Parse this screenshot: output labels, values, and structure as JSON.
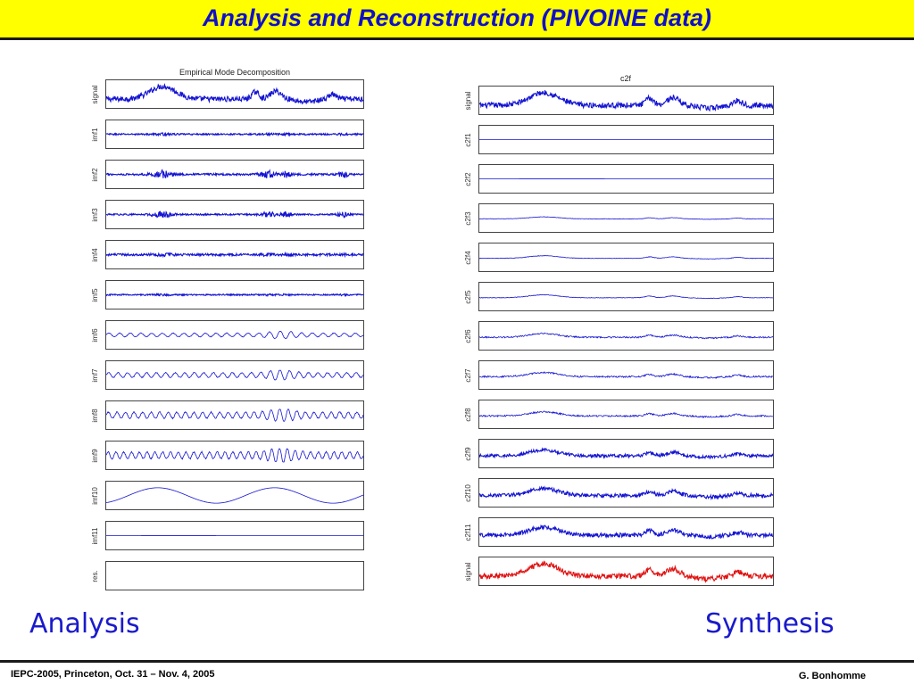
{
  "slide": {
    "title": "Analysis and Reconstruction (PIVOINE data)",
    "analysis_label": "Analysis",
    "synthesis_label": "Synthesis",
    "footer_left": "IEPC-2005, Princeton, Oct. 31 – Nov. 4, 2005",
    "footer_right": "G. Bonhomme"
  },
  "colors": {
    "header_bg": "#ffff00",
    "title_text": "#1010c8",
    "trace_blue": "#1414d2",
    "trace_red": "#e01010",
    "caption_text": "#1a1acc"
  },
  "chart_data": [
    {
      "type": "line",
      "title": "Empirical Mode Decomposition",
      "panels": [
        {
          "label": "signal",
          "style": "signal",
          "amplitude": 0.9
        },
        {
          "label": "imf1",
          "style": "noise",
          "amplitude": 0.25
        },
        {
          "label": "imf2",
          "style": "bursts",
          "amplitude": 0.85
        },
        {
          "label": "imf3",
          "style": "bursts",
          "amplitude": 0.7
        },
        {
          "label": "imf4",
          "style": "noise",
          "amplitude": 0.35
        },
        {
          "label": "imf5",
          "style": "noise",
          "amplitude": 0.22
        },
        {
          "label": "imf6",
          "style": "oscillation",
          "amplitude": 0.3,
          "cycles": 46
        },
        {
          "label": "imf7",
          "style": "oscillation",
          "amplitude": 0.4,
          "cycles": 28
        },
        {
          "label": "imf8",
          "style": "oscillation",
          "amplitude": 0.5,
          "cycles": 17
        },
        {
          "label": "imf9",
          "style": "oscillation",
          "amplitude": 0.55,
          "cycles": 8
        },
        {
          "label": "imf10",
          "style": "slow",
          "amplitude": 0.8
        },
        {
          "label": "imf11",
          "style": "flat",
          "amplitude": 0.05
        },
        {
          "label": "res.",
          "style": "empty",
          "amplitude": 0
        }
      ],
      "color": "#1414d2"
    },
    {
      "type": "line",
      "title": "c2f",
      "panels": [
        {
          "label": "signal",
          "style": "signal",
          "amplitude": 0.9
        },
        {
          "label": "c2f1",
          "style": "flat",
          "amplitude": 0.03
        },
        {
          "label": "c2f2",
          "style": "flat",
          "amplitude": 0.05
        },
        {
          "label": "c2f3",
          "style": "smooth",
          "amplitude": 0.3
        },
        {
          "label": "c2f4",
          "style": "smooth",
          "amplitude": 0.4
        },
        {
          "label": "c2f5",
          "style": "smooth",
          "amplitude": 0.45
        },
        {
          "label": "c2f6",
          "style": "smooth-detail",
          "amplitude": 0.5
        },
        {
          "label": "c2f7",
          "style": "smooth-detail",
          "amplitude": 0.55
        },
        {
          "label": "c2f8",
          "style": "smooth-detail",
          "amplitude": 0.55
        },
        {
          "label": "c2f9",
          "style": "partial",
          "amplitude": 0.6
        },
        {
          "label": "c2f10",
          "style": "partial",
          "amplitude": 0.7
        },
        {
          "label": "c2f11",
          "style": "partial",
          "amplitude": 0.8
        },
        {
          "label": "signal",
          "style": "signal",
          "amplitude": 0.9,
          "color": "#e01010"
        }
      ],
      "color": "#1414d2"
    }
  ]
}
